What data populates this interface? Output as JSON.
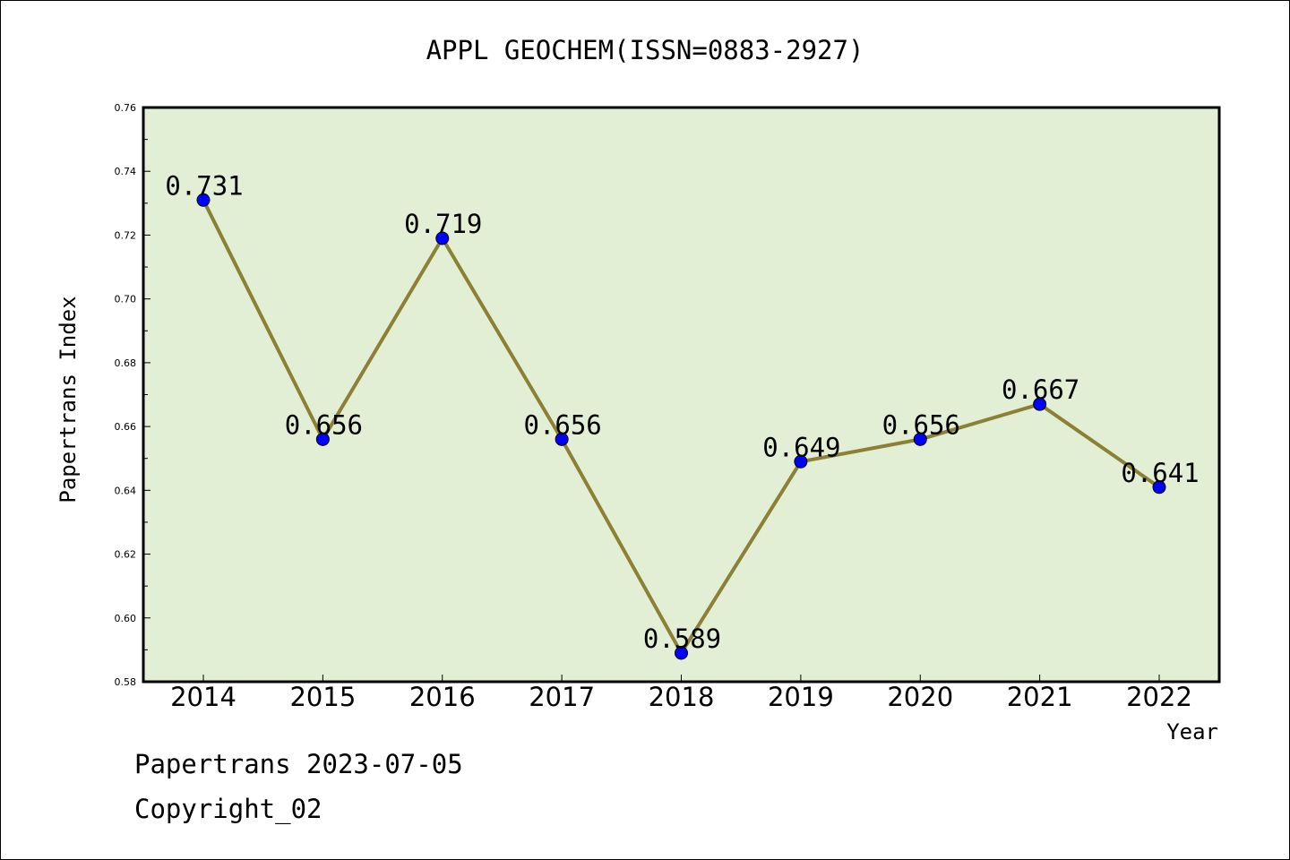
{
  "chart_data": {
    "type": "line",
    "title": "APPL GEOCHEM(ISSN=0883-2927)",
    "xlabel": "Year",
    "ylabel": "Papertrans Index",
    "categories": [
      "2014",
      "2015",
      "2016",
      "2017",
      "2018",
      "2019",
      "2020",
      "2021",
      "2022"
    ],
    "series": [
      {
        "values": [
          0.731,
          0.656,
          0.719,
          0.656,
          0.589,
          0.649,
          0.656,
          0.667,
          0.641
        ]
      }
    ],
    "data_labels": [
      "0.731",
      "0.656",
      "0.719",
      "0.656",
      "0.589",
      "0.649",
      "0.656",
      "0.667",
      "0.641"
    ],
    "ylim": [
      0.58,
      0.76
    ],
    "yticks": [
      "0.58",
      "0.60",
      "0.62",
      "0.64",
      "0.66",
      "0.68",
      "0.70",
      "0.72",
      "0.74",
      "0.76"
    ],
    "grid": false,
    "colors": {
      "plot_background": "#e2efd5",
      "line": "#8b8036",
      "marker": "#0000ff",
      "axis": "#000000"
    }
  },
  "footer": {
    "line1": "Papertrans 2023-07-05",
    "line2": "Copyright_02"
  }
}
